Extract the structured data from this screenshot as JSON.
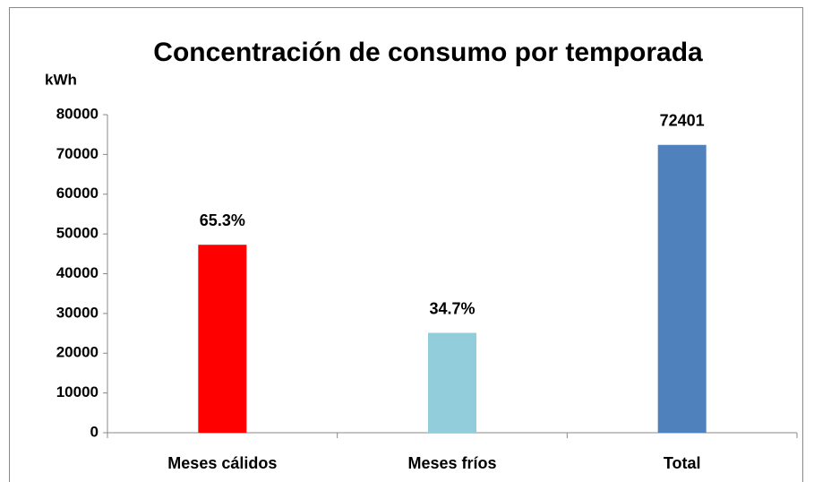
{
  "chart_data": {
    "type": "bar",
    "title": "Concentración de consumo por temporada",
    "y_label": "kWh",
    "categories": [
      "Meses cálidos",
      "Meses fríos",
      "Total"
    ],
    "values": [
      47278,
      25123,
      72401
    ],
    "value_labels": [
      "65.3%",
      "34.7%",
      "72401"
    ],
    "colors": [
      "#ff0000",
      "#92cddc",
      "#4f81bd"
    ],
    "ylim": [
      0,
      80000
    ],
    "yticks": [
      0,
      10000,
      20000,
      30000,
      40000,
      50000,
      60000,
      70000,
      80000
    ],
    "grid": false
  }
}
